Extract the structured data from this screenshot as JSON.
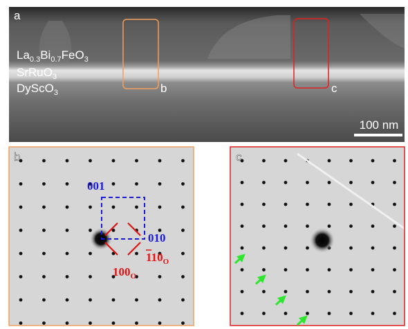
{
  "panel_a": {
    "label": "a",
    "layers": [
      [
        "La",
        "0.3",
        "Bi",
        "0.7",
        "FeO",
        "3"
      ],
      [
        "SrRuO",
        "3"
      ],
      [
        "DyScO",
        "3"
      ]
    ],
    "box_labels": [
      "b",
      "c"
    ],
    "scale_bar": "100 nm"
  },
  "panel_b": {
    "label": "b",
    "indices": [
      [
        "001"
      ],
      [
        "010"
      ],
      [
        "1",
        "10",
        "O"
      ],
      [
        "100",
        "O"
      ]
    ]
  },
  "panel_c": {
    "label": "c"
  }
}
